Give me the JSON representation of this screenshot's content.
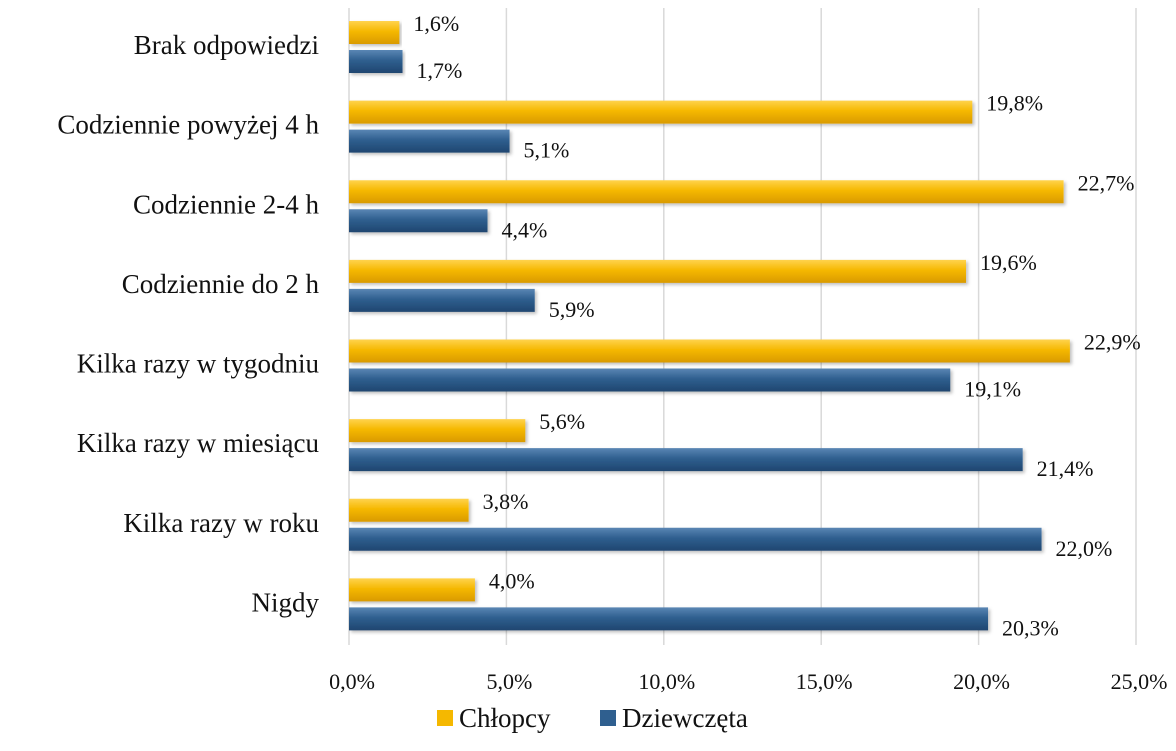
{
  "chart_data": {
    "type": "bar",
    "orientation": "horizontal",
    "categories": [
      "Brak odpowiedzi",
      "Codziennie powyżej 4 h",
      "Codziennie 2-4 h",
      "Codziennie do 2 h",
      "Kilka razy w tygodniu",
      "Kilka razy w miesiącu",
      "Kilka razy w roku",
      "Nigdy"
    ],
    "series": [
      {
        "name": "Chłopcy",
        "color": "#f5b800",
        "values": [
          1.6,
          19.8,
          22.7,
          19.6,
          22.9,
          5.6,
          3.8,
          4.0
        ],
        "labels": [
          "1,6%",
          "19,8%",
          "22,7%",
          "19,6%",
          "22,9%",
          "5,6%",
          "3,8%",
          "4,0%"
        ]
      },
      {
        "name": "Dziewczęta",
        "color": "#2f5f8f",
        "values": [
          1.7,
          5.1,
          4.4,
          5.9,
          19.1,
          21.4,
          22.0,
          20.3
        ],
        "labels": [
          "1,7%",
          "5,1%",
          "4,4%",
          "5,9%",
          "19,1%",
          "21,4%",
          "22,0%",
          "20,3%"
        ]
      }
    ],
    "xlim": [
      0,
      25
    ],
    "xticks": [
      0,
      5,
      10,
      15,
      20,
      25
    ],
    "xtick_labels": [
      "0,0%",
      "5,0%",
      "10,0%",
      "15,0%",
      "20,0%",
      "25,0%"
    ],
    "grid": "vertical",
    "legend_position": "bottom"
  }
}
